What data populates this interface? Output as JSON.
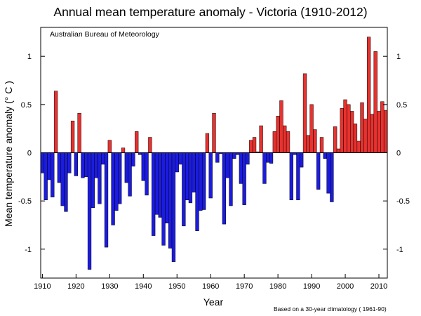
{
  "chart_data": {
    "type": "bar",
    "title": "Annual mean temperature anomaly - Victoria (1910-2012)",
    "source": "Australian Bureau of Meteorology",
    "footnote": "Based on a 30-year climatology ( 1961-90)",
    "xlabel": "Year",
    "ylabel": "Mean temperature anomaly (° C )",
    "xlim": [
      1909.5,
      2012.5
    ],
    "ylim": [
      -1.3,
      1.3
    ],
    "x_ticks": [
      1910,
      1920,
      1930,
      1940,
      1950,
      1960,
      1970,
      1980,
      1990,
      2000,
      2010
    ],
    "y_ticks": [
      -1,
      -0.5,
      0,
      0.5,
      1
    ],
    "y_tick_labels": [
      "-1",
      "-0.5",
      "0",
      "0.5",
      "1"
    ],
    "colors": {
      "positive": "#e8322f",
      "negative": "#1c1ce0",
      "outline": "#000000"
    },
    "x": [
      1910,
      1911,
      1912,
      1913,
      1914,
      1915,
      1916,
      1917,
      1918,
      1919,
      1920,
      1921,
      1922,
      1923,
      1924,
      1925,
      1926,
      1927,
      1928,
      1929,
      1930,
      1931,
      1932,
      1933,
      1934,
      1935,
      1936,
      1937,
      1938,
      1939,
      1940,
      1941,
      1942,
      1943,
      1944,
      1945,
      1946,
      1947,
      1948,
      1949,
      1950,
      1951,
      1952,
      1953,
      1954,
      1955,
      1956,
      1957,
      1958,
      1959,
      1960,
      1961,
      1962,
      1963,
      1964,
      1965,
      1966,
      1967,
      1968,
      1969,
      1970,
      1971,
      1972,
      1973,
      1974,
      1975,
      1976,
      1977,
      1978,
      1979,
      1980,
      1981,
      1982,
      1983,
      1984,
      1985,
      1986,
      1987,
      1988,
      1989,
      1990,
      1991,
      1992,
      1993,
      1994,
      1995,
      1996,
      1997,
      1998,
      1999,
      2000,
      2001,
      2002,
      2003,
      2004,
      2005,
      2006,
      2007,
      2008,
      2009,
      2010,
      2011,
      2012
    ],
    "values": [
      -0.21,
      -0.49,
      -0.28,
      -0.46,
      0.64,
      -0.31,
      -0.55,
      -0.61,
      -0.21,
      0.33,
      -0.24,
      0.41,
      -0.26,
      -0.25,
      -1.21,
      -0.57,
      -0.26,
      -0.53,
      -0.12,
      -0.98,
      0.13,
      -0.75,
      -0.6,
      -0.53,
      0.05,
      -0.31,
      -0.45,
      -0.14,
      0.22,
      -0.02,
      -0.29,
      -0.44,
      0.16,
      -0.86,
      -0.64,
      -0.67,
      -0.96,
      -0.73,
      -0.99,
      -1.13,
      -0.2,
      -0.12,
      -0.76,
      -0.49,
      -0.52,
      -0.41,
      -0.81,
      -0.6,
      -0.59,
      0.2,
      -0.47,
      0.41,
      -0.1,
      -0.01,
      -0.74,
      -0.26,
      -0.55,
      -0.06,
      -0.02,
      -0.32,
      -0.54,
      -0.12,
      0.13,
      0.16,
      0.01,
      0.28,
      -0.32,
      -0.1,
      -0.11,
      0.22,
      0.38,
      0.54,
      0.28,
      0.22,
      -0.49,
      -0.02,
      -0.49,
      -0.15,
      0.82,
      0.18,
      0.5,
      0.24,
      -0.38,
      0.16,
      -0.06,
      -0.42,
      -0.51,
      0.27,
      0.04,
      0.46,
      0.55,
      0.5,
      0.43,
      0.3,
      0.12,
      0.52,
      0.35,
      1.2,
      0.4,
      1.05,
      0.43,
      0.53,
      0.44
    ]
  }
}
